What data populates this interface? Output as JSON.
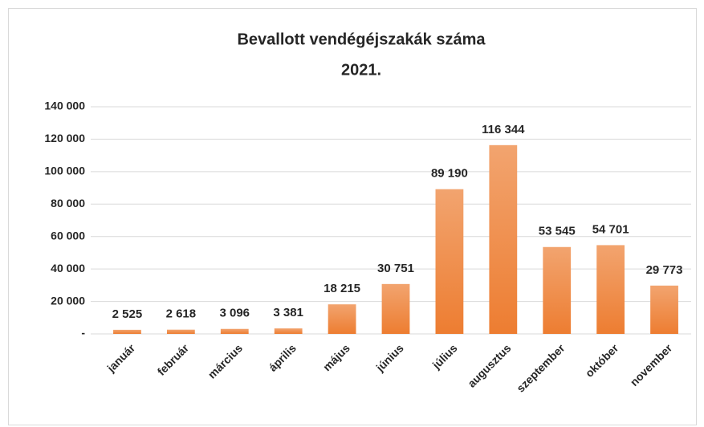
{
  "chart_data": {
    "type": "bar",
    "title": "Bevallott vendégéjszakák száma",
    "subtitle": "2021.",
    "categories": [
      "január",
      "február",
      "március",
      "április",
      "május",
      "június",
      "július",
      "augusztus",
      "szeptember",
      "október",
      "november"
    ],
    "values": [
      2525,
      2618,
      3096,
      3381,
      18215,
      30751,
      89190,
      116344,
      53545,
      54701,
      29773
    ],
    "value_labels": [
      "2 525",
      "2 618",
      "3 096",
      "3 381",
      "18 215",
      "30 751",
      "89 190",
      "116 344",
      "53 545",
      "54 701",
      "29 773"
    ],
    "color": "#ed7d31",
    "ylim": [
      0,
      140000
    ],
    "yticks": [
      {
        "value": 0,
        "label": "-"
      },
      {
        "value": 20000,
        "label": "20 000"
      },
      {
        "value": 40000,
        "label": "40 000"
      },
      {
        "value": 60000,
        "label": "60 000"
      },
      {
        "value": 80000,
        "label": "80 000"
      },
      {
        "value": 100000,
        "label": "100 000"
      },
      {
        "value": 120000,
        "label": "120 000"
      },
      {
        "value": 140000,
        "label": "140 000"
      }
    ],
    "grid": true
  }
}
